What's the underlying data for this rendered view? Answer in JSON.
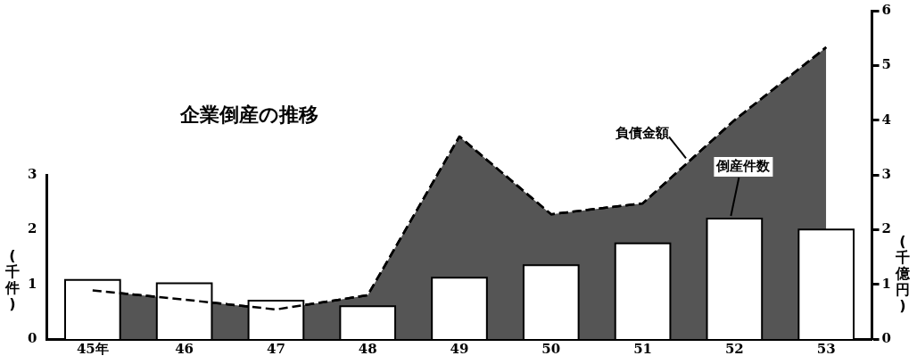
{
  "chart_data": {
    "type": "bar",
    "title": "企業倒産の推移",
    "ylabel": "(千件)",
    "y2label": "(千億円)",
    "categories": [
      "45年",
      "46",
      "47",
      "48",
      "49",
      "50",
      "51",
      "52",
      "53"
    ],
    "series": [
      {
        "name": "倒産件数",
        "color": "#ffffff",
        "values": [
          1.08,
          1.02,
          0.7,
          0.6,
          1.12,
          1.35,
          1.75,
          2.2,
          2.0
        ]
      },
      {
        "name": "負債金額",
        "type": "area",
        "axis": "y2",
        "color": "#555555",
        "line_style": "dashed",
        "values": [
          0.89,
          0.72,
          0.54,
          0.8,
          3.7,
          2.28,
          2.48,
          4.0,
          5.33
        ]
      }
    ],
    "ylim": [
      0,
      3
    ],
    "yticks": [
      0,
      1,
      2,
      3
    ],
    "y2lim": [
      0,
      6
    ],
    "y2ticks": [
      0,
      1,
      2,
      3,
      4,
      5,
      6
    ],
    "grid": false,
    "legend": false
  }
}
